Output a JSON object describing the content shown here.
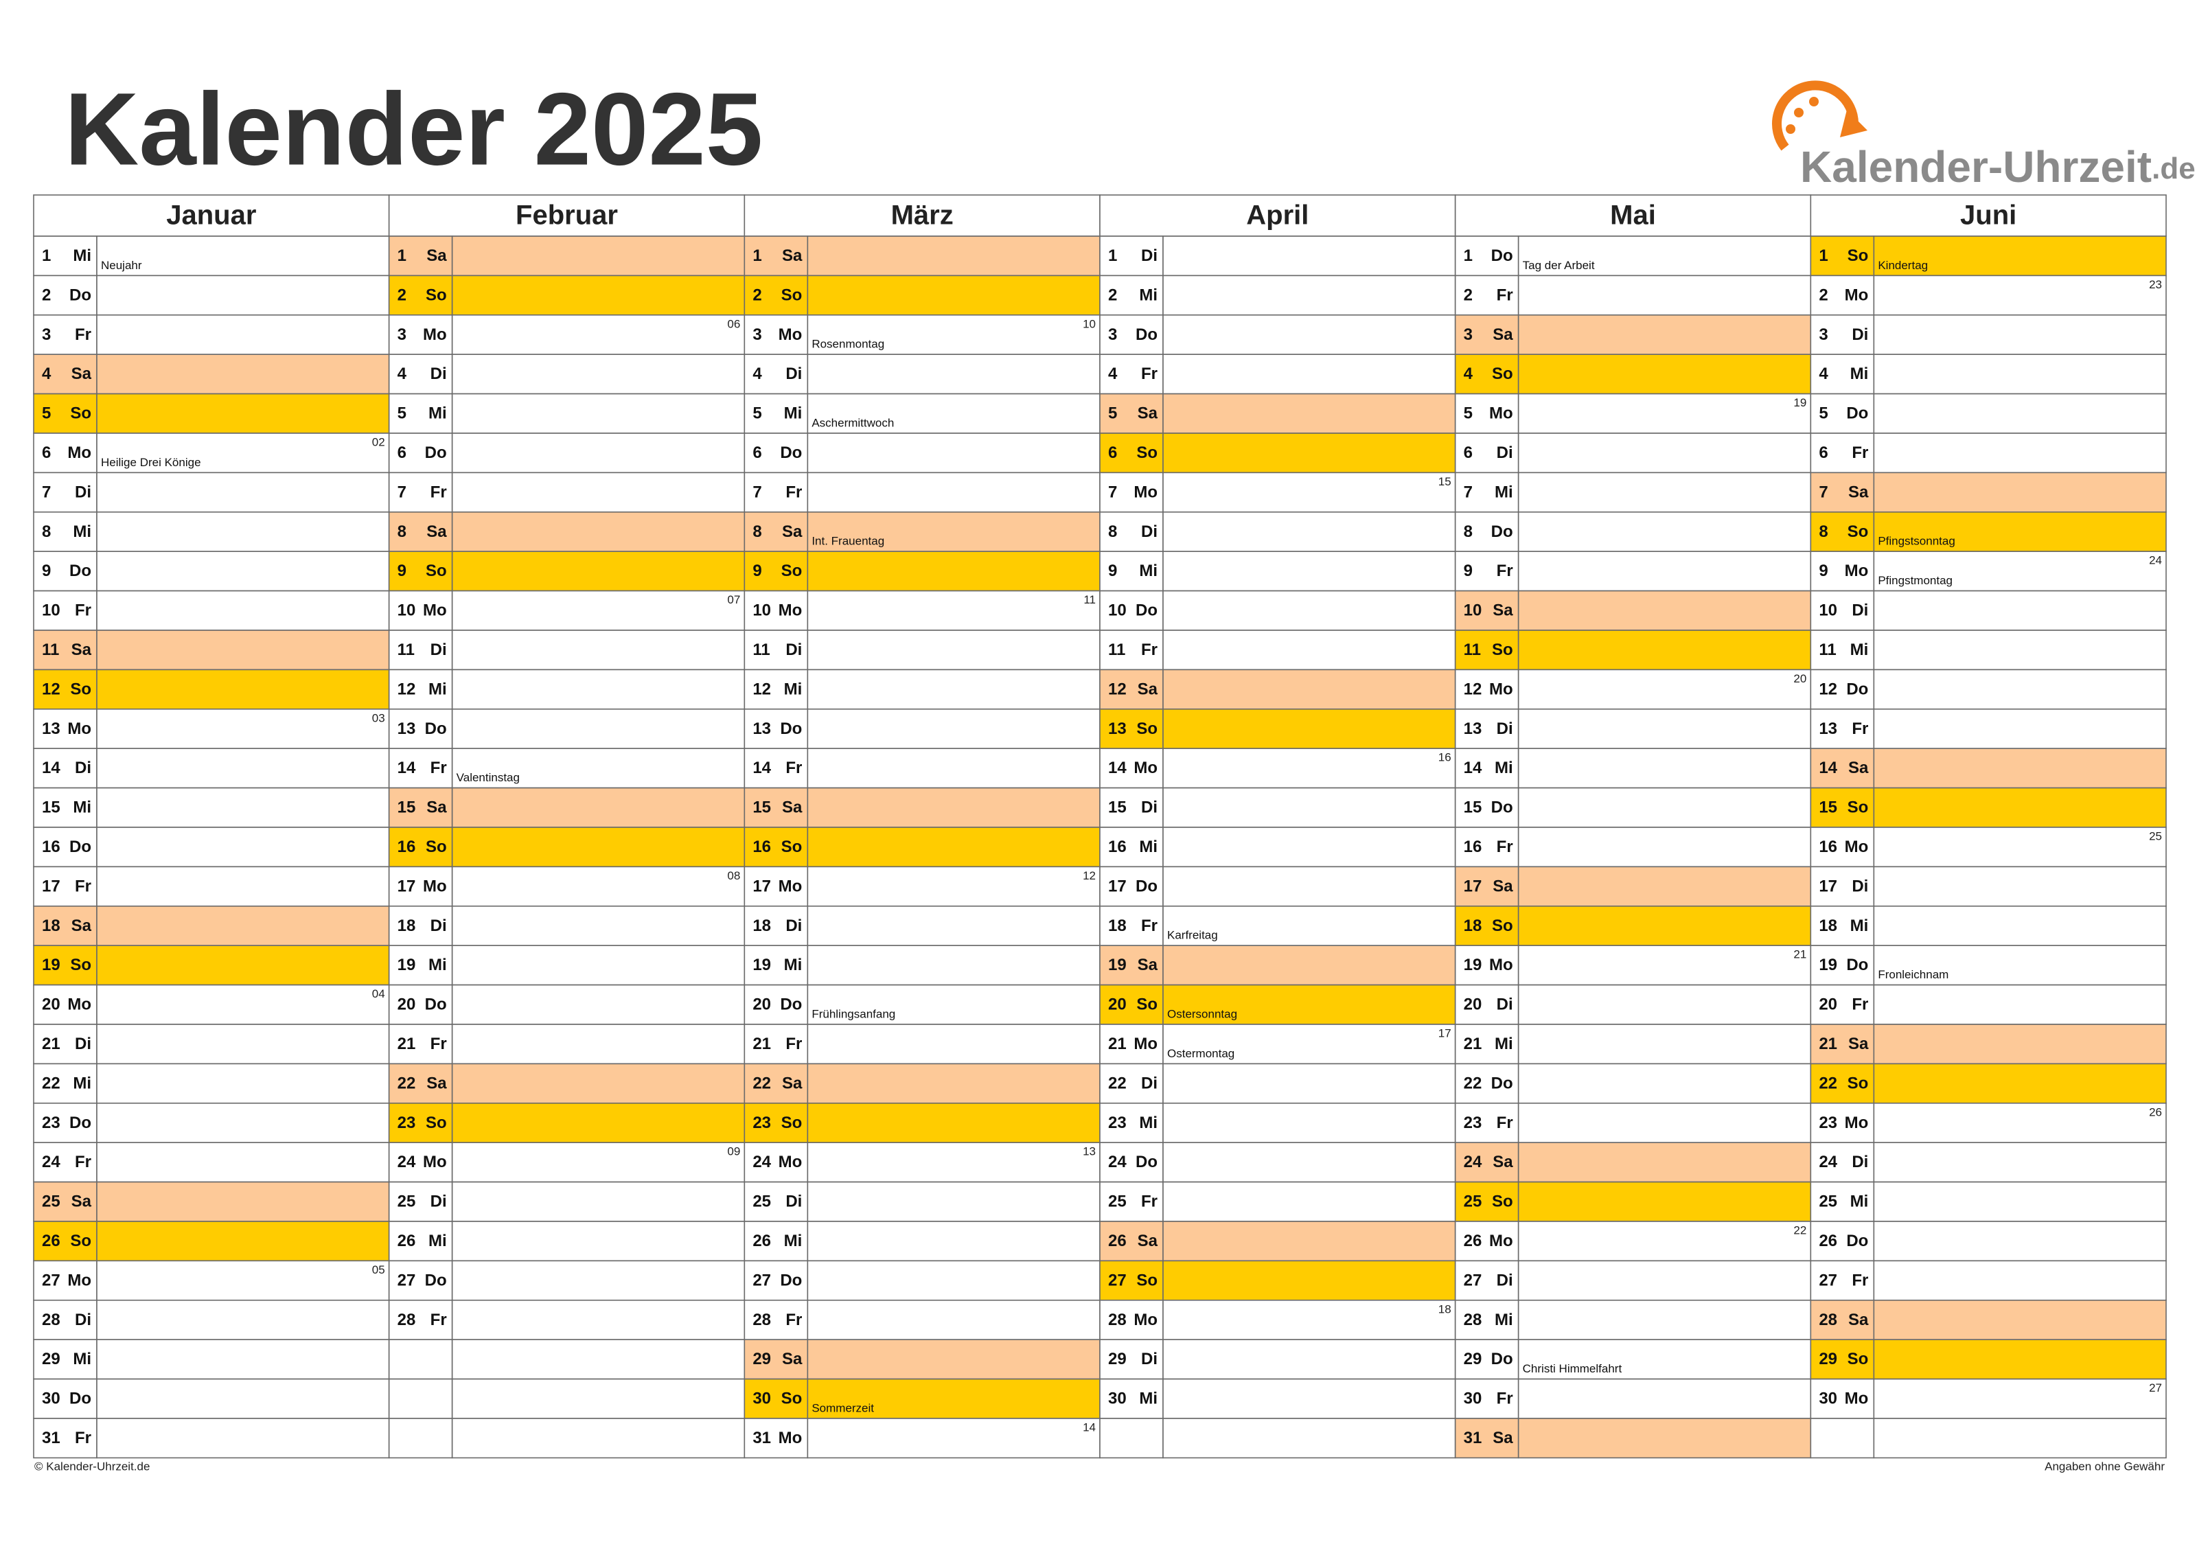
{
  "title": "Kalender 2025",
  "logo": {
    "name": "Kalender-Uhrzeit",
    "tld": ".de"
  },
  "weekend_colors": {
    "Sa": "#fdc998",
    "So": "#ffcc00"
  },
  "holiday_day_color": "#b3263a",
  "holiday_note_color": "#8b1a1a",
  "footer": {
    "left": "© Kalender-Uhrzeit.de",
    "right": "Angaben ohne Gewähr"
  },
  "months": [
    {
      "name": "Januar",
      "days": [
        {
          "day": 1,
          "wd": "Mi",
          "note": "Neujahr",
          "holiday": true
        },
        {
          "day": 2,
          "wd": "Do"
        },
        {
          "day": 3,
          "wd": "Fr"
        },
        {
          "day": 4,
          "wd": "Sa"
        },
        {
          "day": 5,
          "wd": "So"
        },
        {
          "day": 6,
          "wd": "Mo",
          "note": "Heilige Drei Könige",
          "holiday": true,
          "week": "02"
        },
        {
          "day": 7,
          "wd": "Di"
        },
        {
          "day": 8,
          "wd": "Mi"
        },
        {
          "day": 9,
          "wd": "Do"
        },
        {
          "day": 10,
          "wd": "Fr"
        },
        {
          "day": 11,
          "wd": "Sa"
        },
        {
          "day": 12,
          "wd": "So"
        },
        {
          "day": 13,
          "wd": "Mo",
          "week": "03"
        },
        {
          "day": 14,
          "wd": "Di"
        },
        {
          "day": 15,
          "wd": "Mi"
        },
        {
          "day": 16,
          "wd": "Do"
        },
        {
          "day": 17,
          "wd": "Fr"
        },
        {
          "day": 18,
          "wd": "Sa"
        },
        {
          "day": 19,
          "wd": "So"
        },
        {
          "day": 20,
          "wd": "Mo",
          "week": "04"
        },
        {
          "day": 21,
          "wd": "Di"
        },
        {
          "day": 22,
          "wd": "Mi"
        },
        {
          "day": 23,
          "wd": "Do"
        },
        {
          "day": 24,
          "wd": "Fr"
        },
        {
          "day": 25,
          "wd": "Sa"
        },
        {
          "day": 26,
          "wd": "So"
        },
        {
          "day": 27,
          "wd": "Mo",
          "week": "05"
        },
        {
          "day": 28,
          "wd": "Di"
        },
        {
          "day": 29,
          "wd": "Mi"
        },
        {
          "day": 30,
          "wd": "Do"
        },
        {
          "day": 31,
          "wd": "Fr"
        }
      ]
    },
    {
      "name": "Februar",
      "days": [
        {
          "day": 1,
          "wd": "Sa"
        },
        {
          "day": 2,
          "wd": "So"
        },
        {
          "day": 3,
          "wd": "Mo",
          "week": "06"
        },
        {
          "day": 4,
          "wd": "Di"
        },
        {
          "day": 5,
          "wd": "Mi"
        },
        {
          "day": 6,
          "wd": "Do"
        },
        {
          "day": 7,
          "wd": "Fr"
        },
        {
          "day": 8,
          "wd": "Sa"
        },
        {
          "day": 9,
          "wd": "So"
        },
        {
          "day": 10,
          "wd": "Mo",
          "week": "07"
        },
        {
          "day": 11,
          "wd": "Di"
        },
        {
          "day": 12,
          "wd": "Mi"
        },
        {
          "day": 13,
          "wd": "Do"
        },
        {
          "day": 14,
          "wd": "Fr",
          "note": "Valentinstag"
        },
        {
          "day": 15,
          "wd": "Sa"
        },
        {
          "day": 16,
          "wd": "So"
        },
        {
          "day": 17,
          "wd": "Mo",
          "week": "08"
        },
        {
          "day": 18,
          "wd": "Di"
        },
        {
          "day": 19,
          "wd": "Mi"
        },
        {
          "day": 20,
          "wd": "Do"
        },
        {
          "day": 21,
          "wd": "Fr"
        },
        {
          "day": 22,
          "wd": "Sa"
        },
        {
          "day": 23,
          "wd": "So"
        },
        {
          "day": 24,
          "wd": "Mo",
          "week": "09"
        },
        {
          "day": 25,
          "wd": "Di"
        },
        {
          "day": 26,
          "wd": "Mi"
        },
        {
          "day": 27,
          "wd": "Do"
        },
        {
          "day": 28,
          "wd": "Fr"
        }
      ]
    },
    {
      "name": "März",
      "days": [
        {
          "day": 1,
          "wd": "Sa"
        },
        {
          "day": 2,
          "wd": "So"
        },
        {
          "day": 3,
          "wd": "Mo",
          "note": "Rosenmontag",
          "week": "10"
        },
        {
          "day": 4,
          "wd": "Di"
        },
        {
          "day": 5,
          "wd": "Mi",
          "note": "Aschermittwoch"
        },
        {
          "day": 6,
          "wd": "Do"
        },
        {
          "day": 7,
          "wd": "Fr"
        },
        {
          "day": 8,
          "wd": "Sa",
          "note": "Int. Frauentag",
          "holiday": true
        },
        {
          "day": 9,
          "wd": "So"
        },
        {
          "day": 10,
          "wd": "Mo",
          "week": "11"
        },
        {
          "day": 11,
          "wd": "Di"
        },
        {
          "day": 12,
          "wd": "Mi"
        },
        {
          "day": 13,
          "wd": "Do"
        },
        {
          "day": 14,
          "wd": "Fr"
        },
        {
          "day": 15,
          "wd": "Sa"
        },
        {
          "day": 16,
          "wd": "So"
        },
        {
          "day": 17,
          "wd": "Mo",
          "week": "12"
        },
        {
          "day": 18,
          "wd": "Di"
        },
        {
          "day": 19,
          "wd": "Mi"
        },
        {
          "day": 20,
          "wd": "Do",
          "note": "Frühlingsanfang"
        },
        {
          "day": 21,
          "wd": "Fr"
        },
        {
          "day": 22,
          "wd": "Sa"
        },
        {
          "day": 23,
          "wd": "So"
        },
        {
          "day": 24,
          "wd": "Mo",
          "week": "13"
        },
        {
          "day": 25,
          "wd": "Di"
        },
        {
          "day": 26,
          "wd": "Mi"
        },
        {
          "day": 27,
          "wd": "Do"
        },
        {
          "day": 28,
          "wd": "Fr"
        },
        {
          "day": 29,
          "wd": "Sa"
        },
        {
          "day": 30,
          "wd": "So",
          "note": "Sommerzeit"
        },
        {
          "day": 31,
          "wd": "Mo",
          "week": "14"
        }
      ]
    },
    {
      "name": "April",
      "days": [
        {
          "day": 1,
          "wd": "Di"
        },
        {
          "day": 2,
          "wd": "Mi"
        },
        {
          "day": 3,
          "wd": "Do"
        },
        {
          "day": 4,
          "wd": "Fr"
        },
        {
          "day": 5,
          "wd": "Sa"
        },
        {
          "day": 6,
          "wd": "So"
        },
        {
          "day": 7,
          "wd": "Mo",
          "week": "15"
        },
        {
          "day": 8,
          "wd": "Di"
        },
        {
          "day": 9,
          "wd": "Mi"
        },
        {
          "day": 10,
          "wd": "Do"
        },
        {
          "day": 11,
          "wd": "Fr"
        },
        {
          "day": 12,
          "wd": "Sa"
        },
        {
          "day": 13,
          "wd": "So"
        },
        {
          "day": 14,
          "wd": "Mo",
          "week": "16"
        },
        {
          "day": 15,
          "wd": "Di"
        },
        {
          "day": 16,
          "wd": "Mi"
        },
        {
          "day": 17,
          "wd": "Do"
        },
        {
          "day": 18,
          "wd": "Fr",
          "note": "Karfreitag",
          "holiday": true
        },
        {
          "day": 19,
          "wd": "Sa"
        },
        {
          "day": 20,
          "wd": "So",
          "note": "Ostersonntag"
        },
        {
          "day": 21,
          "wd": "Mo",
          "note": "Ostermontag",
          "holiday": true,
          "week": "17"
        },
        {
          "day": 22,
          "wd": "Di"
        },
        {
          "day": 23,
          "wd": "Mi"
        },
        {
          "day": 24,
          "wd": "Do"
        },
        {
          "day": 25,
          "wd": "Fr"
        },
        {
          "day": 26,
          "wd": "Sa"
        },
        {
          "day": 27,
          "wd": "So"
        },
        {
          "day": 28,
          "wd": "Mo",
          "week": "18"
        },
        {
          "day": 29,
          "wd": "Di"
        },
        {
          "day": 30,
          "wd": "Mi"
        }
      ]
    },
    {
      "name": "Mai",
      "days": [
        {
          "day": 1,
          "wd": "Do",
          "note": "Tag der Arbeit",
          "holiday": true
        },
        {
          "day": 2,
          "wd": "Fr"
        },
        {
          "day": 3,
          "wd": "Sa"
        },
        {
          "day": 4,
          "wd": "So"
        },
        {
          "day": 5,
          "wd": "Mo",
          "week": "19"
        },
        {
          "day": 6,
          "wd": "Di"
        },
        {
          "day": 7,
          "wd": "Mi"
        },
        {
          "day": 8,
          "wd": "Do"
        },
        {
          "day": 9,
          "wd": "Fr"
        },
        {
          "day": 10,
          "wd": "Sa"
        },
        {
          "day": 11,
          "wd": "So"
        },
        {
          "day": 12,
          "wd": "Mo",
          "week": "20"
        },
        {
          "day": 13,
          "wd": "Di"
        },
        {
          "day": 14,
          "wd": "Mi"
        },
        {
          "day": 15,
          "wd": "Do"
        },
        {
          "day": 16,
          "wd": "Fr"
        },
        {
          "day": 17,
          "wd": "Sa"
        },
        {
          "day": 18,
          "wd": "So"
        },
        {
          "day": 19,
          "wd": "Mo",
          "week": "21"
        },
        {
          "day": 20,
          "wd": "Di"
        },
        {
          "day": 21,
          "wd": "Mi"
        },
        {
          "day": 22,
          "wd": "Do"
        },
        {
          "day": 23,
          "wd": "Fr"
        },
        {
          "day": 24,
          "wd": "Sa"
        },
        {
          "day": 25,
          "wd": "So"
        },
        {
          "day": 26,
          "wd": "Mo",
          "week": "22"
        },
        {
          "day": 27,
          "wd": "Di"
        },
        {
          "day": 28,
          "wd": "Mi"
        },
        {
          "day": 29,
          "wd": "Do",
          "note": "Christi Himmelfahrt",
          "holiday": true
        },
        {
          "day": 30,
          "wd": "Fr"
        },
        {
          "day": 31,
          "wd": "Sa"
        }
      ]
    },
    {
      "name": "Juni",
      "days": [
        {
          "day": 1,
          "wd": "So",
          "note": "Kindertag"
        },
        {
          "day": 2,
          "wd": "Mo",
          "week": "23"
        },
        {
          "day": 3,
          "wd": "Di"
        },
        {
          "day": 4,
          "wd": "Mi"
        },
        {
          "day": 5,
          "wd": "Do"
        },
        {
          "day": 6,
          "wd": "Fr"
        },
        {
          "day": 7,
          "wd": "Sa"
        },
        {
          "day": 8,
          "wd": "So",
          "note": "Pfingstsonntag"
        },
        {
          "day": 9,
          "wd": "Mo",
          "note": "Pfingstmontag",
          "holiday": true,
          "week": "24"
        },
        {
          "day": 10,
          "wd": "Di"
        },
        {
          "day": 11,
          "wd": "Mi"
        },
        {
          "day": 12,
          "wd": "Do"
        },
        {
          "day": 13,
          "wd": "Fr"
        },
        {
          "day": 14,
          "wd": "Sa"
        },
        {
          "day": 15,
          "wd": "So"
        },
        {
          "day": 16,
          "wd": "Mo",
          "week": "25"
        },
        {
          "day": 17,
          "wd": "Di"
        },
        {
          "day": 18,
          "wd": "Mi"
        },
        {
          "day": 19,
          "wd": "Do",
          "note": "Fronleichnam",
          "holiday": true
        },
        {
          "day": 20,
          "wd": "Fr"
        },
        {
          "day": 21,
          "wd": "Sa"
        },
        {
          "day": 22,
          "wd": "So"
        },
        {
          "day": 23,
          "wd": "Mo",
          "week": "26"
        },
        {
          "day": 24,
          "wd": "Di"
        },
        {
          "day": 25,
          "wd": "Mi"
        },
        {
          "day": 26,
          "wd": "Do"
        },
        {
          "day": 27,
          "wd": "Fr"
        },
        {
          "day": 28,
          "wd": "Sa"
        },
        {
          "day": 29,
          "wd": "So"
        },
        {
          "day": 30,
          "wd": "Mo",
          "week": "27"
        }
      ]
    }
  ]
}
